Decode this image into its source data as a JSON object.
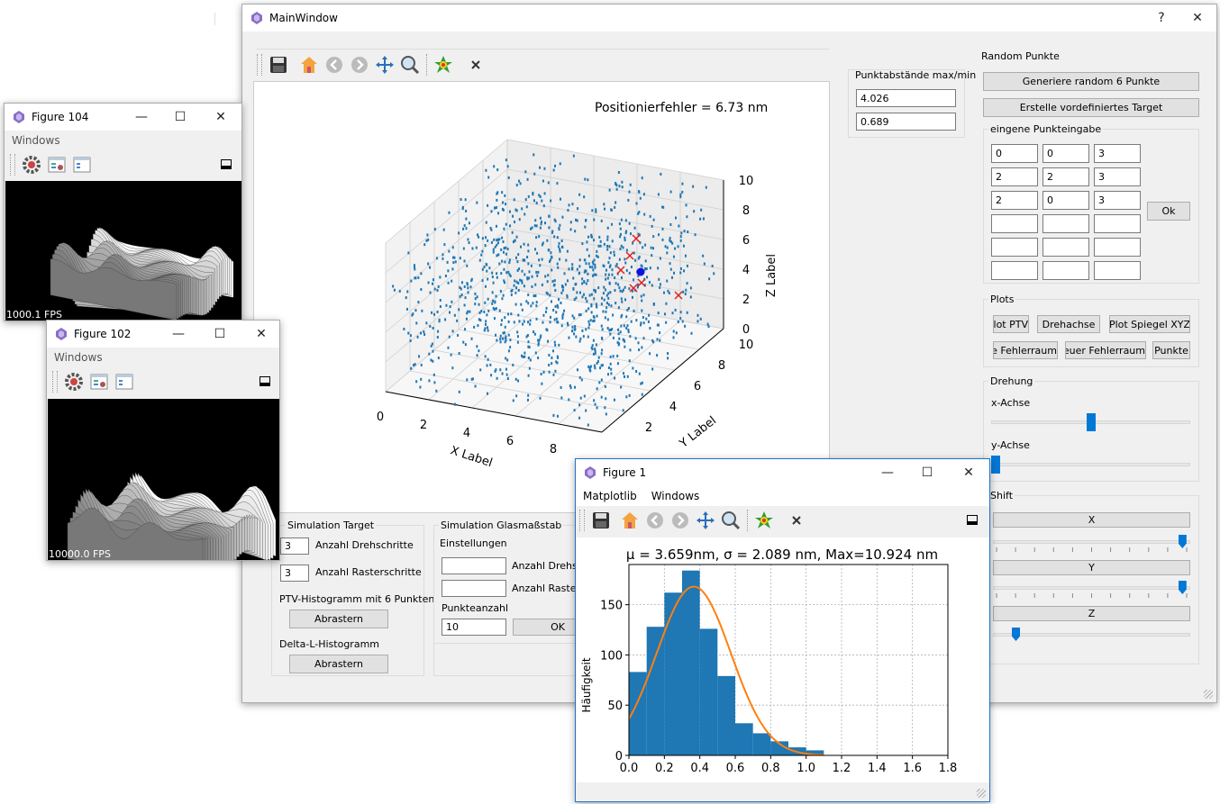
{
  "main_window": {
    "title": "MainWindow",
    "help_btn": "?",
    "close_btn": "✕",
    "plot_title": "Positionierfehler = 6.73 nm",
    "x_label": "X Label",
    "y_label": "Y Label",
    "z_label": "Z Label",
    "x_ticks": [
      "0",
      "2",
      "4",
      "6",
      "8"
    ],
    "y_ticks": [
      "2",
      "4",
      "6",
      "8",
      "10"
    ],
    "z_ticks": [
      "0",
      "2",
      "4",
      "6",
      "8",
      "10"
    ],
    "punktabstaende": {
      "title": "Punktabstände max/min",
      "max": "4.026",
      "min": "0.689"
    },
    "random_punkte": {
      "title": "Random Punkte",
      "btn_generate": "Generiere random 6 Punkte",
      "btn_target": "Erstelle vordefiniertes Target",
      "eingabe_title": "eingene Punkteingabe",
      "rows": [
        [
          "0",
          "0",
          "3"
        ],
        [
          "2",
          "2",
          "3"
        ],
        [
          "2",
          "0",
          "3"
        ],
        [
          "",
          "",
          ""
        ],
        [
          "",
          "",
          ""
        ],
        [
          "",
          "",
          ""
        ]
      ],
      "ok": "Ok"
    },
    "plots": {
      "title": "Plots",
      "btn_ptv": "Plot PTV",
      "btn_drehachse": "Drehachse",
      "btn_spiegel": "Plot Spiegel XYZ",
      "btn_fehlerraum": "Zeige Fehlerraum",
      "btn_neuer": "Neuer Fehlerraum",
      "btn_punkte": "Punkte"
    },
    "drehung": {
      "title": "Drehung",
      "x": "x-Achse",
      "y": "y-Achse",
      "x_level": 0.5,
      "y_level": 0.0
    },
    "shift": {
      "title": "Shift",
      "x": "X",
      "y": "Y",
      "z": "Z",
      "x_level": 0.98,
      "y_level": 0.98,
      "z_level": 0.1
    },
    "sim_target": {
      "title": "Simulation Target",
      "drehschritte_val": "3",
      "drehschritte_lbl": "Anzahl Drehschritte",
      "rasterschritte_val": "3",
      "rasterschritte_lbl": "Anzahl Rasterschritte",
      "ptv_lbl": "PTV-Histogramm mit 6 Punkten",
      "btn_abrastern1": "Abrastern",
      "delta_lbl": "Delta-L-Histogramm",
      "btn_abrastern2": "Abrastern"
    },
    "sim_glas": {
      "title": "Simulation Glasmaßstab",
      "einstellungen": "Einstellungen",
      "drehschritte_lbl": "Anzahl Drehschr",
      "raster_lbl": "Anzahl Rasters",
      "punkteanzahl_lbl": "Punkteanzahl",
      "punkteanzahl_val": "10",
      "ok": "OK"
    }
  },
  "figure104": {
    "title": "Figure 104",
    "menu": "Windows",
    "fps": "1000.1 FPS",
    "minimize": "—",
    "maximize": "☐",
    "close": "✕"
  },
  "figure102": {
    "title": "Figure 102",
    "menu": "Windows",
    "fps": "10000.0 FPS",
    "minimize": "—",
    "maximize": "☐",
    "close": "✕"
  },
  "figure1": {
    "title": "Figure 1",
    "menu": [
      "Matplotlib",
      "Windows"
    ],
    "minimize": "—",
    "maximize": "☐",
    "close": "✕",
    "chart_data": {
      "type": "bar",
      "title": "μ = 3.659nm, σ = 2.089 nm, Max=10.924 nm",
      "xlabel": "",
      "ylabel": "Häufigkeit",
      "bin_edges": [
        0.0,
        0.1,
        0.2,
        0.3,
        0.4,
        0.5,
        0.6,
        0.7,
        0.8,
        0.9,
        1.0,
        1.1
      ],
      "values": [
        83,
        128,
        162,
        184,
        126,
        79,
        32,
        22,
        14,
        8,
        5
      ],
      "fit_curve": {
        "type": "line",
        "color": "#ff7f0e",
        "mu": 0.366,
        "sigma": 0.209,
        "peak": 168
      },
      "xlim": [
        0,
        1.8
      ],
      "ylim": [
        0,
        190
      ],
      "x_ticks": [
        "0.0",
        "0.2",
        "0.4",
        "0.6",
        "0.8",
        "1.0",
        "1.2",
        "1.4",
        "1.6",
        "1.8"
      ],
      "y_ticks": [
        "0",
        "50",
        "100",
        "150"
      ],
      "bar_color": "#1f77b4",
      "grid": true
    }
  }
}
